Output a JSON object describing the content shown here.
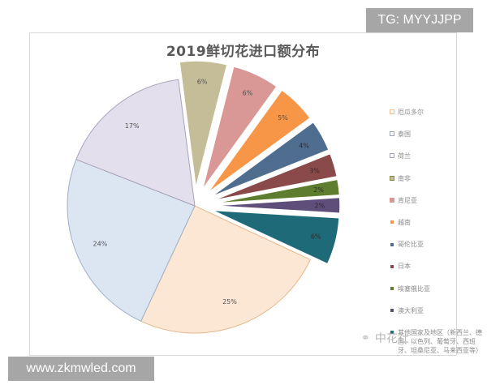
{
  "chart_data": {
    "type": "pie",
    "title": "2019鲜切花进口额分布",
    "categories": [
      "厄瓜多尔",
      "泰国",
      "荷兰",
      "南非",
      "肯尼亚",
      "越南",
      "哥伦比亚",
      "日本",
      "埃塞俄比亚",
      "澳大利亚",
      "其他国家及地区（新西兰、德国、以色列、葡萄牙、西班牙、坦桑尼亚、马来西亚等）"
    ],
    "values": [
      25,
      24,
      17,
      6,
      6,
      5,
      4,
      3,
      2,
      2,
      6
    ],
    "value_labels": [
      "25%",
      "24%",
      "17%",
      "6%",
      "6%",
      "5%",
      "4%",
      "3%",
      "2%",
      "2%",
      "6%"
    ],
    "colors": [
      "#fce6d4",
      "#dce6f2",
      "#e4dfec",
      "#c4bd97",
      "#d99795",
      "#f79646",
      "#4f6d8f",
      "#8b4a4a",
      "#5e7d2e",
      "#5d4f7a",
      "#1f6a78"
    ],
    "exploded": [
      false,
      false,
      false,
      true,
      true,
      true,
      true,
      true,
      true,
      true,
      true
    ],
    "start_angle_deg": 115,
    "legend_position": "right",
    "units": "%"
  },
  "legend": {
    "items": [
      {
        "label": "厄瓜多尔",
        "color": "#f6c08e",
        "style": "hollow"
      },
      {
        "label": "泰国",
        "color": "#9aa6b8",
        "style": "hollow"
      },
      {
        "label": "荷兰",
        "color": "#a49fb0",
        "style": "hollow"
      },
      {
        "label": "南非",
        "color": "#7f8a4a",
        "style": "framed"
      },
      {
        "label": "肯尼亚",
        "color": "#d99795",
        "style": "filled"
      },
      {
        "label": "越南",
        "color": "#f79646",
        "style": "small"
      },
      {
        "label": "哥伦比亚",
        "color": "#4f6d8f",
        "style": "small"
      },
      {
        "label": "日本",
        "color": "#8b4a4a",
        "style": "small"
      },
      {
        "label": "埃塞俄比亚",
        "color": "#5e7d2e",
        "style": "small"
      },
      {
        "label": "澳大利亚",
        "color": "#5d4f7a",
        "style": "small"
      },
      {
        "label": "其他国家及地区（新西兰、德国、以色列、葡萄牙、西班牙、坦桑尼亚、马来西亚等）",
        "color": "#1f6a78",
        "style": "small"
      }
    ]
  },
  "watermarks": {
    "top_right": "TG: MYYJJPP",
    "bottom_left": "www.zkmwled.com",
    "source_logo_text": "中花社",
    "source_logo_icon": "wechat-icon"
  }
}
